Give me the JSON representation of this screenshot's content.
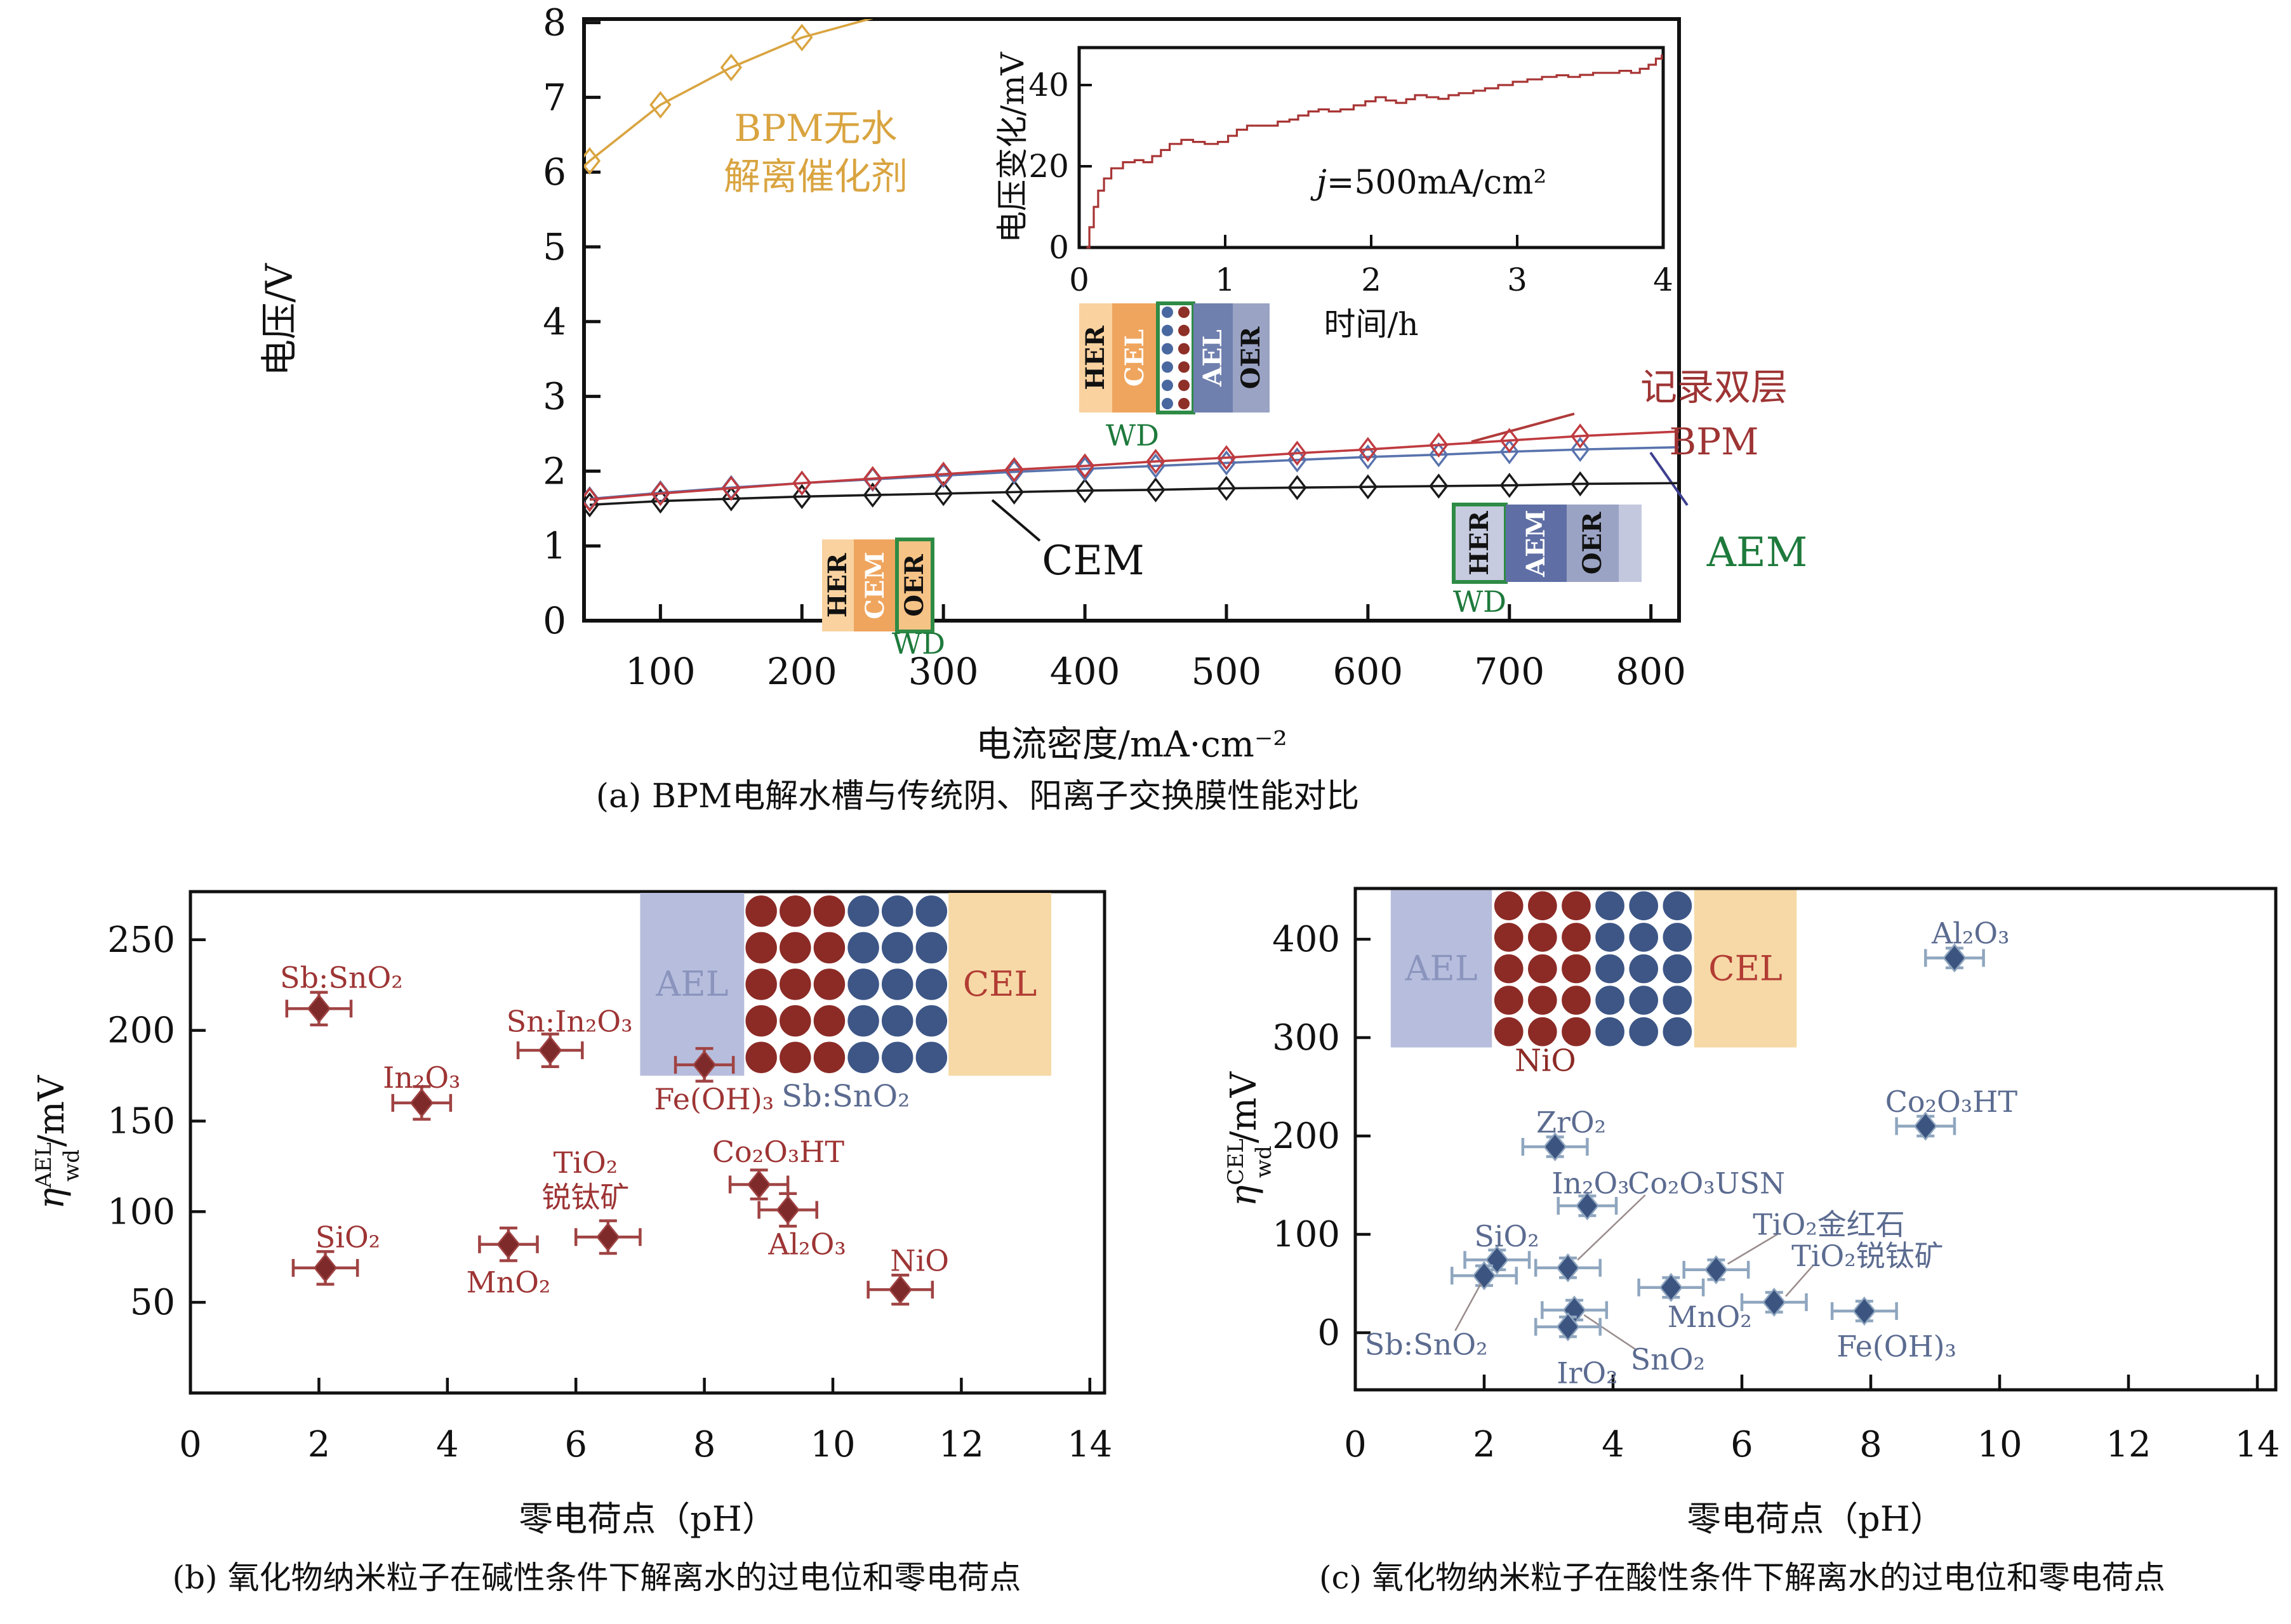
{
  "figure": {
    "caption_a": "(a) BPM电解水槽与传统阴、阳离子交换膜性能对比",
    "caption_b": "(b) 氧化物纳米粒子在碱性条件下解离水的过电位和零电荷点",
    "caption_c": "(c) 氧化物纳米粒子在酸性条件下解离水的过电位和零电荷点"
  },
  "chart_data": [
    {
      "type": "line",
      "id": "a",
      "xlabel": "电流密度/mA·cm⁻²",
      "ylabel": "电压/V",
      "xlim": [
        46,
        820
      ],
      "ylim": [
        0,
        8.05
      ],
      "xticks": [
        100,
        200,
        300,
        400,
        500,
        600,
        700,
        800
      ],
      "yticks": [
        0,
        1,
        2,
        3,
        4,
        5,
        6,
        7,
        8
      ],
      "grid": false,
      "legend_position": "none",
      "series": [
        {
          "id": "CEM",
          "name": "CEM",
          "color": "#1a1a1a",
          "x": [
            50,
            100,
            150,
            200,
            250,
            300,
            350,
            400,
            450,
            500,
            550,
            600,
            650,
            700,
            750
          ],
          "y": [
            1.55,
            1.6,
            1.63,
            1.66,
            1.68,
            1.7,
            1.72,
            1.74,
            1.75,
            1.77,
            1.78,
            1.79,
            1.8,
            1.81,
            1.83
          ],
          "ext": [
            820,
            1.84
          ]
        },
        {
          "id": "AEM",
          "name": "AEM",
          "color": "#5873ad",
          "x": [
            50,
            100,
            150,
            200,
            250,
            300,
            350,
            400,
            450,
            500,
            550,
            600,
            650,
            700,
            750
          ],
          "y": [
            1.63,
            1.71,
            1.78,
            1.84,
            1.89,
            1.94,
            1.99,
            2.03,
            2.07,
            2.11,
            2.15,
            2.19,
            2.22,
            2.26,
            2.29
          ],
          "ext": [
            820,
            2.32
          ]
        },
        {
          "id": "BPM",
          "name": "记录双层 BPM",
          "color": "#bf3b40",
          "x": [
            50,
            100,
            150,
            200,
            250,
            300,
            350,
            400,
            450,
            500,
            550,
            600,
            650,
            700,
            750
          ],
          "y": [
            1.62,
            1.7,
            1.77,
            1.84,
            1.9,
            1.96,
            2.02,
            2.07,
            2.13,
            2.18,
            2.24,
            2.29,
            2.35,
            2.41,
            2.47
          ],
          "ext": [
            820,
            2.53
          ]
        },
        {
          "id": "BPM-dry",
          "name": "BPM无水解离催化剂",
          "color": "#d9a440",
          "x": [
            50,
            100,
            150,
            200
          ],
          "y": [
            6.15,
            6.9,
            7.4,
            7.8
          ],
          "pre": [
            46,
            6.08
          ],
          "ext": [
            250,
            8.06
          ]
        }
      ],
      "annotations": [
        {
          "id": "bpm-dry-label",
          "lines": [
            "BPM无水",
            "解离催化剂"
          ],
          "x": 1285,
          "y": 222,
          "lh": 76,
          "color": "#d9a440",
          "fs": 58
        },
        {
          "id": "bpm-bilayer-label",
          "lines": [
            "记录双层",
            "BPM"
          ],
          "x": 2700,
          "y": 630,
          "lh": 86,
          "color": "#9e3434",
          "fs": 58
        },
        {
          "id": "cem-label",
          "lines": [
            "CEM"
          ],
          "x": 1722,
          "y": 905,
          "lh": 0,
          "color": "#111111",
          "fs": 64
        },
        {
          "id": "aem-label",
          "lines": [
            "AEM"
          ],
          "x": 2768,
          "y": 892,
          "lh": 0,
          "color": "#1e7a3c",
          "fs": 64
        }
      ],
      "leaders": [
        {
          "id": "bpm-leader",
          "pts": [
            2480,
            652,
            2318,
            696
          ],
          "color": "#b03a3a"
        },
        {
          "id": "cem-leader",
          "pts": [
            1563,
            788,
            1638,
            852
          ],
          "color": "#141414"
        },
        {
          "id": "aem-leader",
          "pts": [
            2600,
            713,
            2658,
            796
          ],
          "color": "#3d3f8f"
        }
      ],
      "diagrams": [
        {
          "id": "bpm-membrane",
          "x": 1700,
          "y": 478,
          "h": 172,
          "wd": {
            "x": 1784,
            "y": 702
          },
          "blocks": [
            {
              "t": "HER",
              "w": 52,
              "f": "#f9d2a0",
              "tc": "#111"
            },
            {
              "t": "CEL",
              "w": 72,
              "f": "#efa55e",
              "tc": "#fff"
            },
            {
              "t": "",
              "w": 56,
              "f": "#ffffff",
              "frame": true,
              "dots": true
            },
            {
              "t": "AEL",
              "w": 62,
              "f": "#6f7fae",
              "tc": "#fff"
            },
            {
              "t": "OER",
              "w": 58,
              "f": "#9aa3c4",
              "tc": "#111"
            }
          ]
        },
        {
          "id": "cem-membrane",
          "x": 1295,
          "y": 850,
          "h": 145,
          "wd": {
            "x": 1447,
            "y": 1030
          },
          "blocks": [
            {
              "t": "HER",
              "w": 50,
              "f": "#f9d2a0",
              "tc": "#111"
            },
            {
              "t": "CEM",
              "w": 68,
              "f": "#efa55e",
              "tc": "#fff"
            },
            {
              "t": "OER",
              "w": 56,
              "f": "#f6c386",
              "tc": "#111",
              "frame": true
            }
          ]
        },
        {
          "id": "aem-membrane",
          "x": 2290,
          "y": 795,
          "h": 122,
          "wd": {
            "x": 2331,
            "y": 964
          },
          "blocks": [
            {
              "t": "HER",
              "w": 82,
              "f": "#c7cbdf",
              "tc": "#111",
              "frame": true
            },
            {
              "t": "AEM",
              "w": 96,
              "f": "#5f6fa5",
              "tc": "#fff"
            },
            {
              "t": "OER",
              "w": 82,
              "f": "#9aa3c4",
              "tc": "#111"
            },
            {
              "t": "",
              "w": 36,
              "f": "#c3c8de"
            }
          ]
        }
      ],
      "dot_colors": {
        "blue": "#4a68a0",
        "red": "#8e2f28"
      }
    },
    {
      "type": "line",
      "id": "a-inset",
      "xlabel": "时间/h",
      "ylabel": "电压变化/mV",
      "annotation": {
        "italic": "j",
        "text": "=500mA/cm²"
      },
      "xlim": [
        0,
        4
      ],
      "ylim": [
        0,
        48
      ],
      "xticks": [
        0,
        1,
        2,
        3,
        4
      ],
      "yticks": [
        0,
        20,
        40
      ],
      "series": [
        {
          "id": "voltage-drift",
          "name": "电压变化",
          "color": "#a83434",
          "points": [
            [
              0.05,
              0
            ],
            [
              0.07,
              5
            ],
            [
              0.1,
              10
            ],
            [
              0.13,
              14
            ],
            [
              0.17,
              17
            ],
            [
              0.22,
              19.5
            ],
            [
              0.3,
              21
            ],
            [
              0.38,
              21.5
            ],
            [
              0.44,
              21
            ],
            [
              0.5,
              22.5
            ],
            [
              0.56,
              24
            ],
            [
              0.62,
              25.5
            ],
            [
              0.7,
              26.5
            ],
            [
              0.78,
              26
            ],
            [
              0.86,
              25.5
            ],
            [
              0.95,
              26
            ],
            [
              1.02,
              27.5
            ],
            [
              1.08,
              29
            ],
            [
              1.15,
              30
            ],
            [
              1.28,
              30
            ],
            [
              1.36,
              31
            ],
            [
              1.44,
              31.5
            ],
            [
              1.5,
              32.5
            ],
            [
              1.57,
              33.5
            ],
            [
              1.64,
              34
            ],
            [
              1.71,
              33.5
            ],
            [
              1.79,
              34
            ],
            [
              1.88,
              35
            ],
            [
              1.96,
              36
            ],
            [
              2.03,
              37
            ],
            [
              2.1,
              36.2
            ],
            [
              2.17,
              35.6
            ],
            [
              2.24,
              36.5
            ],
            [
              2.3,
              37.5
            ],
            [
              2.38,
              37
            ],
            [
              2.46,
              36.6
            ],
            [
              2.53,
              37.5
            ],
            [
              2.6,
              38
            ],
            [
              2.7,
              38.6
            ],
            [
              2.78,
              39.2
            ],
            [
              2.87,
              40
            ],
            [
              2.97,
              40.8
            ],
            [
              3.07,
              41.4
            ],
            [
              3.17,
              42
            ],
            [
              3.27,
              42.4
            ],
            [
              3.35,
              42
            ],
            [
              3.43,
              42.5
            ],
            [
              3.52,
              43
            ],
            [
              3.62,
              43
            ],
            [
              3.7,
              43.5
            ],
            [
              3.78,
              43
            ],
            [
              3.84,
              44
            ],
            [
              3.9,
              45
            ],
            [
              3.95,
              46.5
            ],
            [
              3.99,
              47.5
            ]
          ]
        }
      ]
    },
    {
      "type": "scatter",
      "id": "b",
      "xlabel": "零电荷点（pH）",
      "ylabel": {
        "pre": "η",
        "sup": "AEL",
        "sub": "wd",
        "post": "/mV"
      },
      "xlim": [
        0,
        14.22
      ],
      "ylim": [
        0,
        276
      ],
      "xticks": [
        0,
        2,
        4,
        6,
        8,
        10,
        12,
        14
      ],
      "yticks": [
        50,
        100,
        150,
        200,
        250
      ],
      "marker_color": "#7e2a2a",
      "bar_color": "#a04343",
      "label_color": "#9e3434",
      "points": [
        {
          "id": "SbSnO2",
          "label": "Sb:SnO₂",
          "x": 2.0,
          "y": 212,
          "ex": 0.5,
          "ey": 9,
          "lx": 2.35,
          "ly": 229
        },
        {
          "id": "In2O3",
          "label": "In₂O₃",
          "x": 3.6,
          "y": 160,
          "ex": 0.45,
          "ey": 9,
          "lx": 3.6,
          "ly": 174
        },
        {
          "id": "SnIn2O3",
          "label": "Sn:In₂O₃",
          "x": 5.6,
          "y": 189,
          "ex": 0.5,
          "ey": 9,
          "lx": 5.9,
          "ly": 205
        },
        {
          "id": "FeOH3",
          "label": "Fe(OH)₃",
          "x": 8.0,
          "y": 181,
          "ex": 0.45,
          "ey": 9,
          "lx": 8.15,
          "ly": 162
        },
        {
          "id": "SiO2",
          "label": "SiO₂",
          "x": 2.1,
          "y": 69,
          "ex": 0.5,
          "ey": 9,
          "lx": 2.45,
          "ly": 86
        },
        {
          "id": "MnO2",
          "label": "MnO₂",
          "x": 4.95,
          "y": 82,
          "ex": 0.45,
          "ey": 9,
          "lx": 4.95,
          "ly": 61
        },
        {
          "id": "TiO2-anatase",
          "label_lines": [
            "TiO₂",
            "锐钛矿"
          ],
          "x": 6.5,
          "y": 86,
          "ex": 0.5,
          "ey": 9,
          "lx": 6.15,
          "ly": 127,
          "lh": 19
        },
        {
          "id": "Co2O3HT",
          "label": "Co₂O₃HT",
          "x": 8.85,
          "y": 115,
          "ex": 0.45,
          "ey": 8,
          "lx": 9.15,
          "ly": 133
        },
        {
          "id": "Al2O3",
          "label": "Al₂O₃",
          "x": 9.3,
          "y": 101,
          "ex": 0.45,
          "ey": 9,
          "lx": 9.6,
          "ly": 82
        },
        {
          "id": "NiO",
          "label": "NiO",
          "x": 11.05,
          "y": 57,
          "ex": 0.5,
          "ey": 8,
          "lx": 11.35,
          "ly": 73
        }
      ],
      "inset": {
        "x0": 7.0,
        "x1": 13.4,
        "y0": 175,
        "y1": 276,
        "ael": [
          7.0,
          8.62
        ],
        "red": [
          8.62,
          10.21
        ],
        "blue": [
          10.21,
          11.8
        ],
        "cel": [
          11.8,
          13.4
        ],
        "ael_text": "AEL",
        "cel_text": "CEL",
        "ael_color": "#b7bedd",
        "cel_color": "#f6d9a6",
        "ael_text_color": "#8a94bd",
        "cel_text_color": "#b23c34",
        "red_particle": "#8c2b26",
        "blue_particle": "#3d5686",
        "label": {
          "text": "Sb:SnO₂",
          "x": 10.2,
          "y": 158,
          "color": "#5b6b90"
        }
      }
    },
    {
      "type": "scatter",
      "id": "c",
      "xlabel": "零电荷点（pH）",
      "ylabel": {
        "pre": "η",
        "sup": "CEL",
        "sub": "wd",
        "post": "/mV"
      },
      "xlim": [
        0,
        14.29
      ],
      "ylim": [
        -58,
        451
      ],
      "xticks": [
        0,
        2,
        4,
        6,
        8,
        10,
        12,
        14
      ],
      "yticks": [
        0,
        100,
        200,
        300,
        400
      ],
      "marker_color": "#3c5480",
      "bar_color": "#8fa6bf",
      "label_color": "#5b6b90",
      "points": [
        {
          "id": "Al2O3",
          "label": "Al₂O₃",
          "x": 9.3,
          "y": 381,
          "ex": 0.45,
          "ey": 10,
          "lx": 9.55,
          "ly": 406
        },
        {
          "id": "Co2O3HT",
          "label": "Co₂O₃HT",
          "x": 8.85,
          "y": 210,
          "ex": 0.45,
          "ey": 10,
          "lx": 9.25,
          "ly": 235
        },
        {
          "id": "ZrO2",
          "label": "ZrO₂",
          "x": 3.1,
          "y": 189,
          "ex": 0.5,
          "ey": 10,
          "lx": 3.35,
          "ly": 214
        },
        {
          "id": "In2O3",
          "label": "In₂O₃",
          "x": 3.6,
          "y": 129,
          "ex": 0.45,
          "ey": 10,
          "lx": 3.65,
          "ly": 152
        },
        {
          "id": "Co2O3USN",
          "label": "Co₂O₃USN",
          "x": 3.3,
          "y": 66,
          "ex": 0.5,
          "ey": 10,
          "lx": 5.45,
          "ly": 152,
          "leader": [
            4.5,
            140,
            3.45,
            74
          ]
        },
        {
          "id": "SiO2",
          "label": "SiO₂",
          "x": 2.2,
          "y": 74,
          "ex": 0.5,
          "ey": 10,
          "lx": 2.35,
          "ly": 98
        },
        {
          "id": "SbSnO2",
          "label": "Sb:SnO₂",
          "x": 2.0,
          "y": 58,
          "ex": 0.5,
          "ey": 10,
          "lx": 1.1,
          "ly": -12,
          "leader": [
            1.55,
            2,
            1.95,
            50
          ]
        },
        {
          "id": "TiO2-rutile",
          "label": "TiO₂金红石",
          "x": 5.6,
          "y": 64,
          "ex": 0.5,
          "ey": 10,
          "lx": 7.35,
          "ly": 110,
          "leader": [
            6.55,
            100,
            5.78,
            70
          ]
        },
        {
          "id": "TiO2-anatase",
          "label": "TiO₂锐钛矿",
          "x": 6.5,
          "y": 31,
          "ex": 0.5,
          "ey": 10,
          "lx": 7.95,
          "ly": 78,
          "leader": [
            7.1,
            68,
            6.68,
            37
          ]
        },
        {
          "id": "MnO2",
          "label": "MnO₂",
          "x": 4.9,
          "y": 46,
          "ex": 0.5,
          "ey": 10,
          "lx": 5.5,
          "ly": 16
        },
        {
          "id": "SnO2",
          "label": "SnO₂",
          "x": 3.4,
          "y": 23,
          "ex": 0.5,
          "ey": 10,
          "lx": 4.85,
          "ly": -27,
          "leader": [
            4.35,
            -17,
            3.55,
            18
          ]
        },
        {
          "id": "IrO2",
          "label": "IrO₂",
          "x": 3.3,
          "y": 6,
          "ex": 0.5,
          "ey": 10,
          "lx": 3.6,
          "ly": -41
        },
        {
          "id": "FeOH3",
          "label": "Fe(OH)₃",
          "x": 7.9,
          "y": 22,
          "ex": 0.5,
          "ey": 10,
          "lx": 8.4,
          "ly": -14
        }
      ],
      "inset": {
        "x0": 0.55,
        "x1": 6.85,
        "y0": 290,
        "y1": 450,
        "ael": [
          0.55,
          2.12
        ],
        "red": [
          2.12,
          3.69
        ],
        "blue": [
          3.69,
          5.26
        ],
        "cel": [
          5.26,
          6.85
        ],
        "ael_text": "AEL",
        "cel_text": "CEL",
        "ael_color": "#b7bedd",
        "cel_color": "#f6d9a6",
        "ael_text_color": "#8a94bd",
        "cel_text_color": "#b23c34",
        "red_particle": "#8c2b26",
        "blue_particle": "#3d5686",
        "label": {
          "text": "NiO",
          "x": 2.95,
          "y": 266,
          "color": "#8c2b26"
        }
      }
    }
  ]
}
